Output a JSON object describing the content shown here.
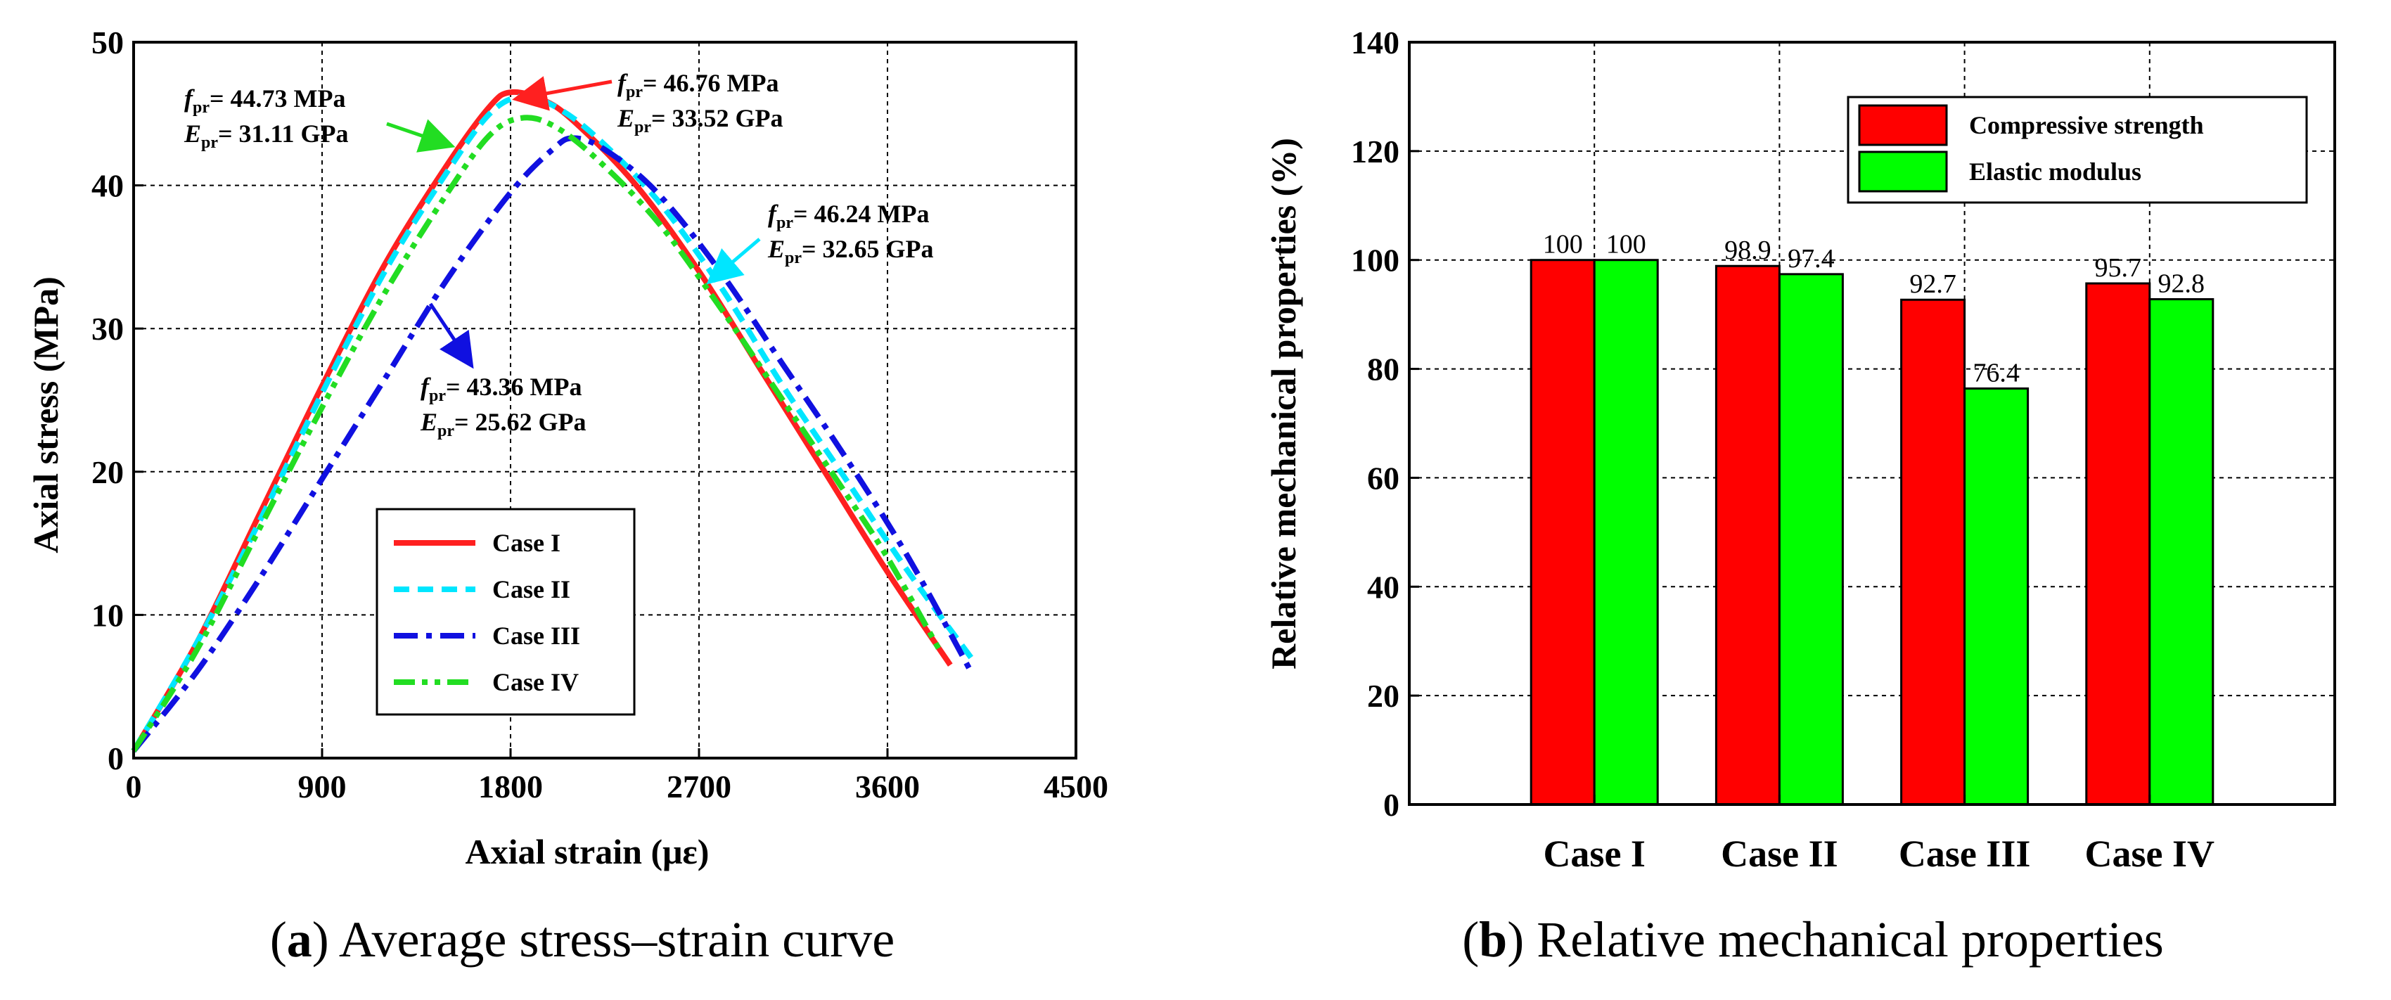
{
  "captions": {
    "a_letter": "a",
    "a_text": "Average stress–strain curve",
    "b_letter": "b",
    "b_text": "Relative mechanical properties"
  },
  "chart_data": [
    {
      "type": "line",
      "xlabel": "Axial strain (με)",
      "ylabel": "Axial stress (MPa)",
      "xlim": [
        0,
        4500
      ],
      "ylim": [
        0,
        50
      ],
      "xticks": [
        0,
        900,
        1800,
        2700,
        3600,
        4500
      ],
      "yticks": [
        0,
        10,
        20,
        30,
        40,
        50
      ],
      "grid": true,
      "legend": "lower-middle",
      "series": [
        {
          "name": "Case I",
          "color": "#ff2020",
          "dash": "solid",
          "points": [
            [
              0,
              0.5
            ],
            [
              300,
              8
            ],
            [
              600,
              17
            ],
            [
              900,
              26
            ],
            [
              1200,
              34.5
            ],
            [
              1500,
              41.5
            ],
            [
              1700,
              45.5
            ],
            [
              1800,
              46.5
            ],
            [
              1950,
              46
            ],
            [
              2100,
              44.5
            ],
            [
              2400,
              40
            ],
            [
              2700,
              34
            ],
            [
              3000,
              27
            ],
            [
              3300,
              20
            ],
            [
              3600,
              13
            ],
            [
              3900,
              6.5
            ]
          ]
        },
        {
          "name": "Case II",
          "color": "#00e6ff",
          "dash": "dash",
          "points": [
            [
              0,
              0.5
            ],
            [
              300,
              8
            ],
            [
              600,
              16.5
            ],
            [
              900,
              25.5
            ],
            [
              1200,
              34
            ],
            [
              1500,
              41
            ],
            [
              1700,
              45
            ],
            [
              1850,
              46.2
            ],
            [
              2000,
              45.6
            ],
            [
              2200,
              43.5
            ],
            [
              2500,
              39
            ],
            [
              2800,
              33
            ],
            [
              3100,
              26
            ],
            [
              3400,
              19.5
            ],
            [
              3700,
              13
            ],
            [
              4000,
              7
            ]
          ]
        },
        {
          "name": "Case III",
          "color": "#1010e0",
          "dash": "dashdot",
          "points": [
            [
              0,
              0.5
            ],
            [
              300,
              6
            ],
            [
              600,
              12.5
            ],
            [
              900,
              19.5
            ],
            [
              1200,
              26.5
            ],
            [
              1500,
              33.5
            ],
            [
              1800,
              39.5
            ],
            [
              2000,
              42.5
            ],
            [
              2100,
              43.3
            ],
            [
              2250,
              42.5
            ],
            [
              2500,
              39.5
            ],
            [
              2800,
              34
            ],
            [
              3100,
              27.5
            ],
            [
              3400,
              21
            ],
            [
              3700,
              14
            ],
            [
              4000,
              6
            ]
          ]
        },
        {
          "name": "Case IV",
          "color": "#22dd22",
          "dash": "dashdotdot",
          "points": [
            [
              0,
              0.5
            ],
            [
              300,
              7.5
            ],
            [
              600,
              16
            ],
            [
              900,
              24.5
            ],
            [
              1200,
              32.5
            ],
            [
              1500,
              39.5
            ],
            [
              1700,
              43.5
            ],
            [
              1850,
              44.7
            ],
            [
              2000,
              44.2
            ],
            [
              2200,
              42
            ],
            [
              2500,
              37.5
            ],
            [
              2800,
              31.5
            ],
            [
              3100,
              25
            ],
            [
              3400,
              18.5
            ],
            [
              3600,
              14
            ],
            [
              3850,
              7.5
            ]
          ]
        }
      ],
      "annotations": [
        {
          "f": "f",
          "fsub": "pr",
          "ftext": "= 44.73 MPa",
          "e": "E",
          "esub": "pr",
          "etext": "= 31.11 GPa"
        },
        {
          "f": "f",
          "fsub": "pr",
          "ftext": "= 46.76 MPa",
          "e": "E",
          "esub": "pr",
          "etext": "= 33.52 GPa"
        },
        {
          "f": "f",
          "fsub": "pr",
          "ftext": "= 46.24 MPa",
          "e": "E",
          "esub": "pr",
          "etext": "= 32.65 GPa"
        },
        {
          "f": "f",
          "fsub": "pr",
          "ftext": "= 43.36 MPa",
          "e": "E",
          "esub": "pr",
          "etext": "= 25.62 GPa"
        }
      ]
    },
    {
      "type": "bar",
      "ylabel": "Relative mechanical properties (%)",
      "ylim": [
        0,
        140
      ],
      "yticks": [
        0,
        20,
        40,
        60,
        80,
        100,
        120,
        140
      ],
      "grid": true,
      "legend": "top-right",
      "categories": [
        "Case I",
        "Case II",
        "Case III",
        "Case IV"
      ],
      "series": [
        {
          "name": "Compressive strength",
          "color": "#ff0000",
          "values": [
            100,
            98.9,
            92.7,
            95.7
          ],
          "labels": [
            "100",
            "98.9",
            "92.7",
            "95.7"
          ]
        },
        {
          "name": "Elastic modulus",
          "color": "#00ff00",
          "values": [
            100,
            97.4,
            76.4,
            92.8
          ],
          "labels": [
            "100",
            "97.4",
            "76.4",
            "92.8"
          ]
        }
      ]
    }
  ]
}
